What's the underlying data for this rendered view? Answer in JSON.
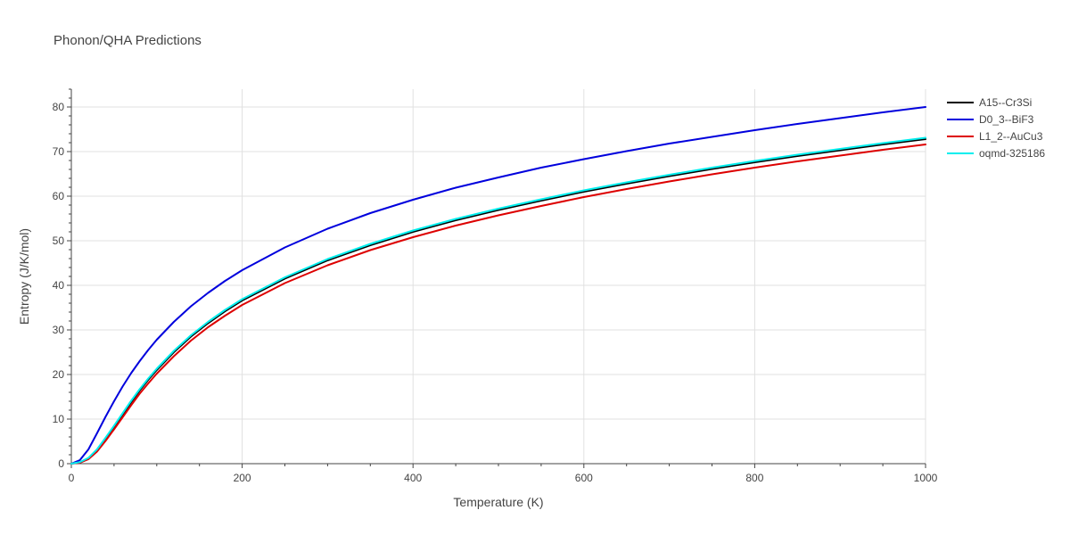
{
  "chart_data": {
    "type": "line",
    "title": "Phonon/QHA Predictions",
    "xlabel": "Temperature (K)",
    "ylabel": "Entropy (J/K/mol)",
    "xlim": [
      0,
      1000
    ],
    "ylim": [
      0,
      84
    ],
    "x_ticks": [
      0,
      200,
      400,
      600,
      800,
      1000
    ],
    "y_ticks": [
      0,
      10,
      20,
      30,
      40,
      50,
      60,
      70,
      80
    ],
    "grid": true,
    "legend_position": "top-right",
    "series": [
      {
        "name": "A15--Cr3Si",
        "color": "#000000",
        "points": [
          [
            0,
            0
          ],
          [
            10,
            0.3
          ],
          [
            20,
            1.2
          ],
          [
            30,
            3.0
          ],
          [
            40,
            5.5
          ],
          [
            50,
            8.2
          ],
          [
            60,
            11.0
          ],
          [
            70,
            13.8
          ],
          [
            80,
            16.4
          ],
          [
            90,
            18.8
          ],
          [
            100,
            21.0
          ],
          [
            120,
            25.0
          ],
          [
            140,
            28.5
          ],
          [
            160,
            31.5
          ],
          [
            180,
            34.2
          ],
          [
            200,
            36.6
          ],
          [
            250,
            41.5
          ],
          [
            300,
            45.6
          ],
          [
            350,
            49.0
          ],
          [
            400,
            52.0
          ],
          [
            450,
            54.6
          ],
          [
            500,
            56.9
          ],
          [
            550,
            59.0
          ],
          [
            600,
            61.0
          ],
          [
            650,
            62.8
          ],
          [
            700,
            64.5
          ],
          [
            750,
            66.1
          ],
          [
            800,
            67.6
          ],
          [
            850,
            69.0
          ],
          [
            900,
            70.3
          ],
          [
            950,
            71.6
          ],
          [
            1000,
            72.8
          ]
        ]
      },
      {
        "name": "D0_3--BiF3",
        "color": "#0000dd",
        "points": [
          [
            0,
            0
          ],
          [
            10,
            0.8
          ],
          [
            20,
            3.2
          ],
          [
            30,
            6.8
          ],
          [
            40,
            10.5
          ],
          [
            50,
            14.0
          ],
          [
            60,
            17.3
          ],
          [
            70,
            20.3
          ],
          [
            80,
            23.0
          ],
          [
            90,
            25.5
          ],
          [
            100,
            27.8
          ],
          [
            120,
            31.8
          ],
          [
            140,
            35.3
          ],
          [
            160,
            38.3
          ],
          [
            180,
            41.0
          ],
          [
            200,
            43.4
          ],
          [
            250,
            48.5
          ],
          [
            300,
            52.7
          ],
          [
            350,
            56.2
          ],
          [
            400,
            59.2
          ],
          [
            450,
            61.9
          ],
          [
            500,
            64.2
          ],
          [
            550,
            66.4
          ],
          [
            600,
            68.3
          ],
          [
            650,
            70.1
          ],
          [
            700,
            71.8
          ],
          [
            750,
            73.3
          ],
          [
            800,
            74.8
          ],
          [
            850,
            76.2
          ],
          [
            900,
            77.5
          ],
          [
            950,
            78.8
          ],
          [
            1000,
            80.0
          ]
        ]
      },
      {
        "name": "L1_2--AuCu3",
        "color": "#dd0000",
        "points": [
          [
            0,
            0
          ],
          [
            10,
            0.2
          ],
          [
            20,
            1.0
          ],
          [
            30,
            2.7
          ],
          [
            40,
            5.1
          ],
          [
            50,
            7.7
          ],
          [
            60,
            10.4
          ],
          [
            70,
            13.1
          ],
          [
            80,
            15.7
          ],
          [
            90,
            18.0
          ],
          [
            100,
            20.2
          ],
          [
            120,
            24.1
          ],
          [
            140,
            27.6
          ],
          [
            160,
            30.6
          ],
          [
            180,
            33.2
          ],
          [
            200,
            35.6
          ],
          [
            250,
            40.5
          ],
          [
            300,
            44.5
          ],
          [
            350,
            47.9
          ],
          [
            400,
            50.8
          ],
          [
            450,
            53.4
          ],
          [
            500,
            55.7
          ],
          [
            550,
            57.8
          ],
          [
            600,
            59.8
          ],
          [
            650,
            61.6
          ],
          [
            700,
            63.3
          ],
          [
            750,
            64.9
          ],
          [
            800,
            66.4
          ],
          [
            850,
            67.8
          ],
          [
            900,
            69.1
          ],
          [
            950,
            70.4
          ],
          [
            1000,
            71.6
          ]
        ]
      },
      {
        "name": "oqmd-325186",
        "color": "#00eeee",
        "points": [
          [
            0,
            0
          ],
          [
            10,
            0.35
          ],
          [
            20,
            1.3
          ],
          [
            30,
            3.2
          ],
          [
            40,
            5.8
          ],
          [
            50,
            8.5
          ],
          [
            60,
            11.3
          ],
          [
            70,
            14.1
          ],
          [
            80,
            16.7
          ],
          [
            90,
            19.1
          ],
          [
            100,
            21.3
          ],
          [
            120,
            25.3
          ],
          [
            140,
            28.8
          ],
          [
            160,
            31.8
          ],
          [
            180,
            34.5
          ],
          [
            200,
            36.9
          ],
          [
            250,
            41.8
          ],
          [
            300,
            45.9
          ],
          [
            350,
            49.3
          ],
          [
            400,
            52.3
          ],
          [
            450,
            54.9
          ],
          [
            500,
            57.2
          ],
          [
            550,
            59.3
          ],
          [
            600,
            61.3
          ],
          [
            650,
            63.1
          ],
          [
            700,
            64.8
          ],
          [
            750,
            66.4
          ],
          [
            800,
            67.9
          ],
          [
            850,
            69.3
          ],
          [
            900,
            70.6
          ],
          [
            950,
            71.9
          ],
          [
            1000,
            73.1
          ]
        ]
      }
    ]
  }
}
